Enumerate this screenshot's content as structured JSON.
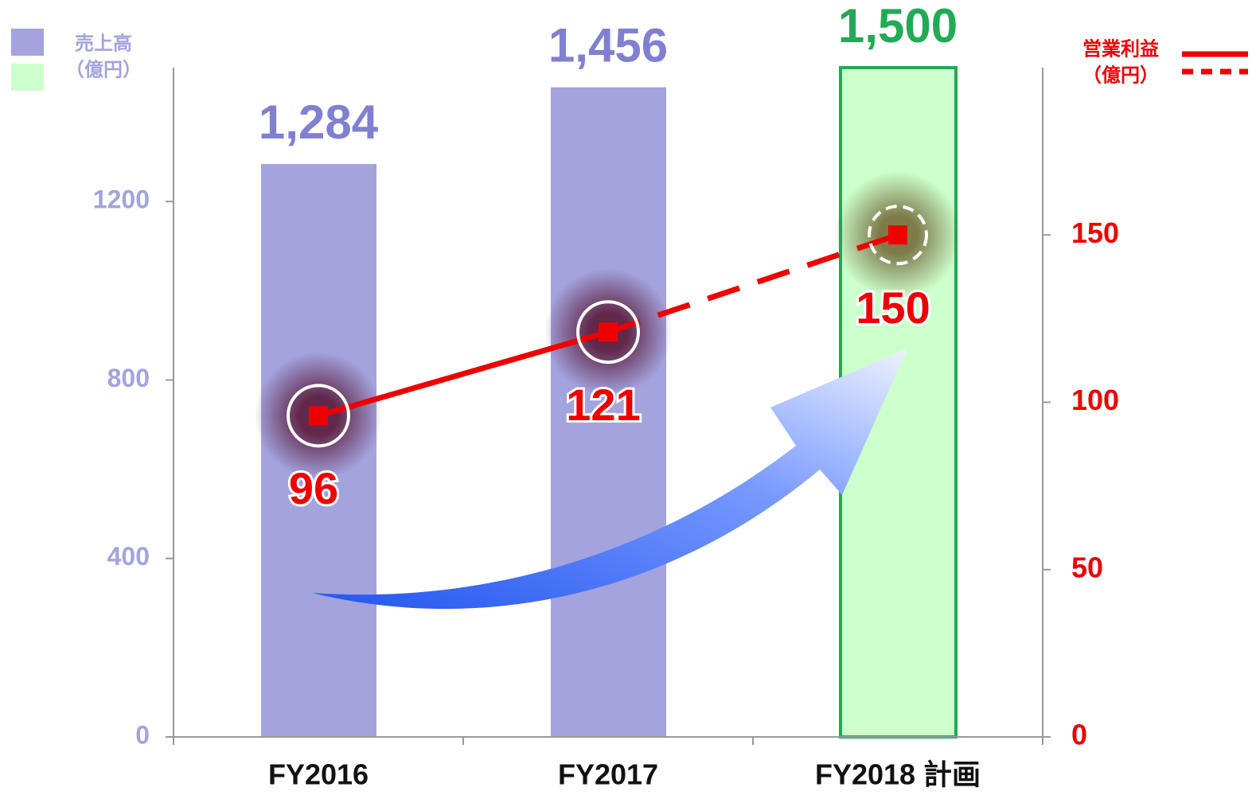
{
  "chart_data": {
    "type": "bar_line",
    "categories": [
      "FY2016",
      "FY2017",
      "FY2018 計画"
    ],
    "forecast": [
      false,
      false,
      true
    ],
    "series": [
      {
        "name": "売上高",
        "unit": "（億円）",
        "type": "bar",
        "color": "#a3a3de",
        "forecast_color": "#ccffcc",
        "forecast_border": "#22aa55",
        "values": [
          1284,
          1456,
          1500
        ],
        "value_labels": [
          "1,284",
          "1,456",
          "1,500"
        ]
      },
      {
        "name": "営業利益",
        "unit": "（億円）",
        "type": "line",
        "axis": "y2",
        "color": "#ee0000",
        "values": [
          96,
          121,
          150
        ]
      }
    ],
    "ylim": [
      0,
      1500
    ],
    "yticks": [
      0,
      400,
      800,
      1200
    ],
    "y2lim": [
      0,
      200
    ],
    "y2ticks": [
      0,
      50,
      100,
      150
    ]
  }
}
